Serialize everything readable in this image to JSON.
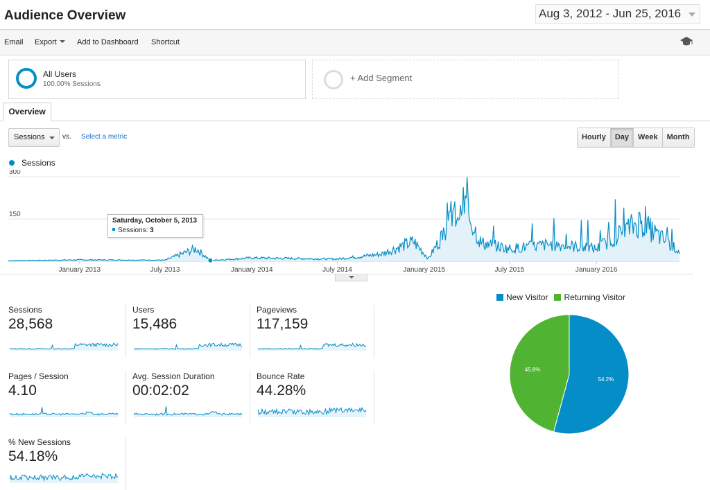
{
  "header": {
    "title": "Audience Overview",
    "date_range": "Aug 3, 2012 - Jun 25, 2016"
  },
  "toolbar": {
    "email": "Email",
    "export": "Export",
    "add_to_dashboard": "Add to Dashboard",
    "shortcut": "Shortcut",
    "icon": "graduation-cap-icon"
  },
  "segments": {
    "all_users": {
      "name": "All Users",
      "sub": "100.00% Sessions"
    },
    "add": "+ Add Segment"
  },
  "tabs": [
    "Overview"
  ],
  "controls": {
    "metric": "Sessions",
    "vs": "vs.",
    "select_metric": "Select a metric",
    "granularity": [
      "Hourly",
      "Day",
      "Week",
      "Month"
    ],
    "active_granularity": "Day"
  },
  "chart_data": [
    {
      "type": "area",
      "series": [
        {
          "name": "Sessions"
        }
      ],
      "ytick_labels": [
        "300",
        "150"
      ],
      "ylim": [
        0,
        300
      ],
      "xtick_labels": [
        "January 2013",
        "July 2013",
        "January 2014",
        "July 2014",
        "January 2015",
        "July 2015",
        "January 2016"
      ],
      "x_range": [
        "Aug 3, 2012",
        "Jun 25, 2016"
      ],
      "grid": true,
      "color": "#058dc7",
      "approx_profile": [
        {
          "x": "2012-08-03",
          "y": 2
        },
        {
          "x": "2013-01-01",
          "y": 5
        },
        {
          "x": "2013-07-01",
          "y": 4
        },
        {
          "x": "2013-09-05",
          "y": 45
        },
        {
          "x": "2013-10-05",
          "y": 3
        },
        {
          "x": "2014-01-01",
          "y": 12
        },
        {
          "x": "2014-07-01",
          "y": 8
        },
        {
          "x": "2014-10-01",
          "y": 25
        },
        {
          "x": "2014-12-10",
          "y": 70
        },
        {
          "x": "2015-01-10",
          "y": 10
        },
        {
          "x": "2015-03-25",
          "y": 210
        },
        {
          "x": "2015-05-01",
          "y": 65
        },
        {
          "x": "2015-07-01",
          "y": 45
        },
        {
          "x": "2015-10-01",
          "y": 60
        },
        {
          "x": "2016-01-01",
          "y": 45
        },
        {
          "x": "2016-04-01",
          "y": 140
        },
        {
          "x": "2016-06-25",
          "y": 35
        }
      ],
      "tooltip": {
        "date": "Saturday, October 5, 2013",
        "series": "Sessions:",
        "value": "3"
      }
    },
    {
      "type": "pie",
      "series": [
        {
          "name": "New Visitor",
          "value": 54.2,
          "label": "54.2%",
          "color": "#058dc7"
        },
        {
          "name": "Returning Visitor",
          "value": 45.8,
          "label": "45.8%",
          "color": "#50b432"
        }
      ]
    }
  ],
  "metrics": [
    {
      "label": "Sessions",
      "value": "28,568"
    },
    {
      "label": "Users",
      "value": "15,486"
    },
    {
      "label": "Pageviews",
      "value": "117,159"
    },
    {
      "label": "Pages / Session",
      "value": "4.10"
    },
    {
      "label": "Avg. Session Duration",
      "value": "00:02:02"
    },
    {
      "label": "Bounce Rate",
      "value": "44.28%"
    },
    {
      "label": "% New Sessions",
      "value": "54.18%"
    }
  ]
}
